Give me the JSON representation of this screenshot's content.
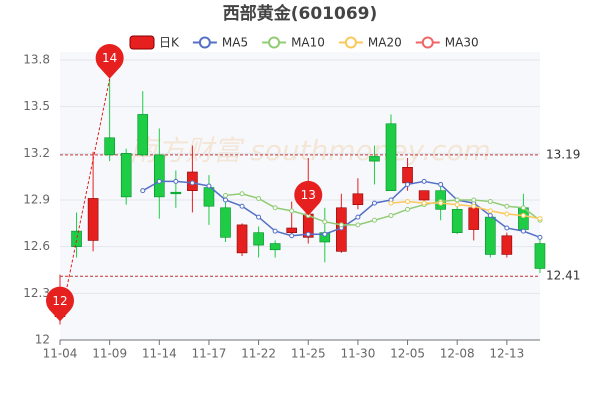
{
  "chart_data": {
    "type": "candlestick",
    "title": "西部黄金(601069)",
    "watermark": "南方财富 southmoney.com",
    "categories": [
      "11-04",
      null,
      null,
      "11-09",
      null,
      null,
      "11-14",
      null,
      null,
      "11-17",
      null,
      null,
      "11-22",
      null,
      null,
      "11-25",
      null,
      null,
      "11-30",
      null,
      null,
      "12-05",
      null,
      null,
      "12-08",
      null,
      null,
      "12-13",
      null,
      null
    ],
    "candle_name": "日K",
    "up_color": "#e6201f",
    "down_color": "#1fcc45",
    "open": [
      12.15,
      12.7,
      12.64,
      13.3,
      13.2,
      13.45,
      13.19,
      12.95,
      12.96,
      12.98,
      12.85,
      12.56,
      12.69,
      12.62,
      12.69,
      12.66,
      12.69,
      12.57,
      12.87,
      13.18,
      13.39,
      13.01,
      12.9,
      12.96,
      12.84,
      12.71,
      12.79,
      12.55,
      12.85,
      12.62
    ],
    "close": [
      12.32,
      12.6,
      12.91,
      13.19,
      12.92,
      13.19,
      12.92,
      12.94,
      13.08,
      12.86,
      12.66,
      12.74,
      12.61,
      12.58,
      12.72,
      12.81,
      12.63,
      12.85,
      12.94,
      13.15,
      12.96,
      13.11,
      12.96,
      12.84,
      12.69,
      12.85,
      12.55,
      12.67,
      12.71,
      12.46
    ],
    "high": [
      12.42,
      12.82,
      13.21,
      13.68,
      13.23,
      13.6,
      13.36,
      13.09,
      13.25,
      13.06,
      12.9,
      12.75,
      12.73,
      12.64,
      12.89,
      13.17,
      12.85,
      12.94,
      13.04,
      13.25,
      13.45,
      13.17,
      12.96,
      13.01,
      12.9,
      12.91,
      12.84,
      12.69,
      12.94,
      12.65
    ],
    "low": [
      12.1,
      12.53,
      12.57,
      13.15,
      12.87,
      13.18,
      12.78,
      12.85,
      12.82,
      12.74,
      12.63,
      12.54,
      12.53,
      12.53,
      12.67,
      12.62,
      12.5,
      12.56,
      12.84,
      13.0,
      12.96,
      12.96,
      12.86,
      12.77,
      12.68,
      12.64,
      12.53,
      12.53,
      12.69,
      12.43
    ],
    "series": [
      {
        "name": "MA5",
        "color": "#5470c6",
        "values": [
          null,
          null,
          null,
          null,
          null,
          12.96,
          13.02,
          13.02,
          13.01,
          12.99,
          12.9,
          12.86,
          12.79,
          12.7,
          12.67,
          12.68,
          12.68,
          12.72,
          12.79,
          12.88,
          12.9,
          13.0,
          13.02,
          13.0,
          12.9,
          12.88,
          12.8,
          12.72,
          12.7,
          12.66
        ]
      },
      {
        "name": "MA10",
        "color": "#91cc75",
        "values": [
          null,
          null,
          null,
          null,
          null,
          null,
          null,
          null,
          null,
          null,
          12.93,
          12.94,
          12.91,
          12.85,
          12.83,
          12.8,
          12.76,
          12.74,
          12.74,
          12.77,
          12.8,
          12.84,
          12.87,
          12.89,
          12.9,
          12.9,
          12.89,
          12.86,
          12.85,
          12.77
        ]
      },
      {
        "name": "MA20",
        "color": "#fac858",
        "values": [
          null,
          null,
          null,
          null,
          null,
          null,
          null,
          null,
          null,
          null,
          null,
          null,
          null,
          null,
          null,
          null,
          null,
          null,
          null,
          null,
          12.88,
          12.89,
          12.88,
          12.88,
          12.87,
          12.86,
          12.83,
          12.81,
          12.8,
          12.78
        ]
      },
      {
        "name": "MA30",
        "color": "#ee6666",
        "values": [
          null,
          null,
          null,
          null,
          null,
          null,
          null,
          null,
          null,
          null,
          null,
          null,
          null,
          null,
          null,
          null,
          null,
          null,
          null,
          null,
          null,
          null,
          null,
          null,
          null,
          null,
          null,
          null,
          null,
          null
        ]
      }
    ],
    "ylim": [
      12,
      13.8
    ],
    "yticks": [
      12,
      12.3,
      12.6,
      12.9,
      13.2,
      13.5,
      13.8
    ],
    "grid": true,
    "reference_lines": [
      13.19,
      12.41
    ],
    "markers": [
      {
        "label": "12",
        "index": 0,
        "value": 12.12
      },
      {
        "label": "14",
        "index": 3,
        "value": 13.68
      },
      {
        "label": "13",
        "index": 15,
        "value": 12.8
      }
    ]
  }
}
